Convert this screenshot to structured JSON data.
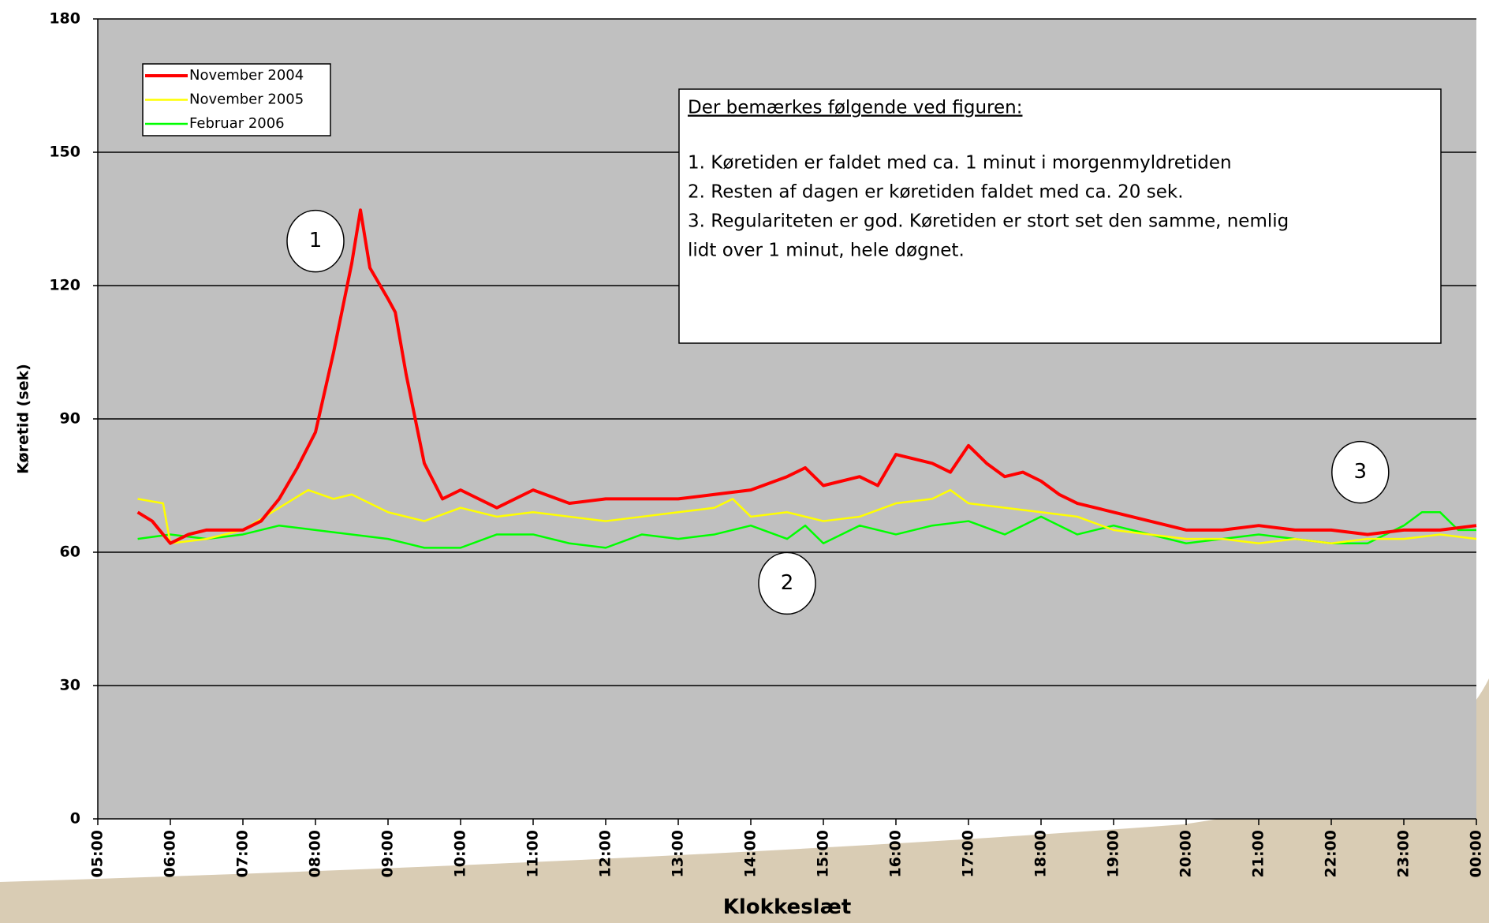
{
  "chart_data": {
    "type": "line",
    "xlabel": "Klokkeslæt",
    "ylabel": "Køretid (sek)",
    "xlim": [
      5,
      24
    ],
    "xticks": [
      {
        "value": 5,
        "label": "05:00"
      },
      {
        "value": 6,
        "label": "06:00"
      },
      {
        "value": 7,
        "label": "07:00"
      },
      {
        "value": 8,
        "label": "08:00"
      },
      {
        "value": 9,
        "label": "09:00"
      },
      {
        "value": 10,
        "label": "10:00"
      },
      {
        "value": 11,
        "label": "11:00"
      },
      {
        "value": 12,
        "label": "12:00"
      },
      {
        "value": 13,
        "label": "13:00"
      },
      {
        "value": 14,
        "label": "14:00"
      },
      {
        "value": 15,
        "label": "15:00"
      },
      {
        "value": 16,
        "label": "16:00"
      },
      {
        "value": 17,
        "label": "17:00"
      },
      {
        "value": 18,
        "label": "18:00"
      },
      {
        "value": 19,
        "label": "19:00"
      },
      {
        "value": 20,
        "label": "20:00"
      },
      {
        "value": 21,
        "label": "21:00"
      },
      {
        "value": 22,
        "label": "22:00"
      },
      {
        "value": 23,
        "label": "23:00"
      },
      {
        "value": 24,
        "label": "00:00"
      }
    ],
    "ylim": [
      0,
      180
    ],
    "yticks": [
      0,
      30,
      60,
      90,
      120,
      150,
      180
    ],
    "grid": true,
    "legend": "upper left",
    "series": [
      {
        "name": "November 2004",
        "color": "#ff0000",
        "x": [
          5.55,
          5.75,
          6.0,
          6.25,
          6.5,
          6.75,
          7.0,
          7.25,
          7.5,
          7.75,
          8.0,
          8.25,
          8.5,
          8.62,
          8.75,
          9.0,
          9.1,
          9.25,
          9.5,
          9.75,
          10.0,
          10.5,
          11.0,
          11.5,
          12.0,
          12.5,
          13.0,
          13.5,
          14.0,
          14.5,
          14.75,
          15.0,
          15.5,
          15.75,
          16.0,
          16.5,
          16.75,
          17.0,
          17.25,
          17.5,
          17.75,
          18.0,
          18.25,
          18.5,
          19.0,
          19.5,
          20.0,
          20.5,
          21.0,
          21.5,
          22.0,
          22.5,
          23.0,
          23.5,
          24.0
        ],
        "values": [
          69,
          67,
          62,
          64,
          65,
          65,
          65,
          67,
          72,
          79,
          87,
          105,
          125,
          137,
          124,
          117,
          114,
          100,
          80,
          72,
          74,
          70,
          74,
          71,
          72,
          72,
          72,
          73,
          74,
          77,
          79,
          75,
          77,
          75,
          82,
          80,
          78,
          84,
          80,
          77,
          78,
          76,
          73,
          71,
          69,
          67,
          65,
          65,
          66,
          65,
          65,
          64,
          65,
          65,
          66
        ]
      },
      {
        "name": "November 2005",
        "color": "#ffff00",
        "x": [
          5.55,
          5.9,
          6.0,
          6.5,
          7.0,
          7.5,
          7.9,
          8.25,
          8.5,
          9.0,
          9.5,
          10.0,
          10.5,
          11.0,
          11.5,
          12.0,
          12.5,
          13.0,
          13.5,
          13.75,
          14.0,
          14.5,
          15.0,
          15.5,
          16.0,
          16.5,
          16.75,
          17.0,
          17.5,
          18.0,
          18.5,
          19.0,
          19.5,
          20.0,
          20.5,
          21.0,
          21.5,
          22.0,
          22.5,
          23.0,
          23.5,
          24.0
        ],
        "values": [
          72,
          71,
          62,
          63,
          65,
          70,
          74,
          72,
          73,
          69,
          67,
          70,
          68,
          69,
          68,
          67,
          68,
          69,
          70,
          72,
          68,
          69,
          67,
          68,
          71,
          72,
          74,
          71,
          70,
          69,
          68,
          65,
          64,
          63,
          63,
          62,
          63,
          62,
          63,
          63,
          64,
          63
        ]
      },
      {
        "name": "Februar 2006",
        "color": "#00ff00",
        "x": [
          5.55,
          6.0,
          6.5,
          7.0,
          7.5,
          8.0,
          8.5,
          9.0,
          9.5,
          10.0,
          10.5,
          11.0,
          11.5,
          12.0,
          12.5,
          13.0,
          13.5,
          14.0,
          14.5,
          14.75,
          15.0,
          15.5,
          16.0,
          16.5,
          17.0,
          17.5,
          18.0,
          18.5,
          19.0,
          19.5,
          20.0,
          20.5,
          21.0,
          21.5,
          22.0,
          22.5,
          23.0,
          23.25,
          23.5,
          23.75,
          24.0
        ],
        "values": [
          63,
          64,
          63,
          64,
          66,
          65,
          64,
          63,
          61,
          61,
          64,
          64,
          62,
          61,
          64,
          63,
          64,
          66,
          63,
          66,
          62,
          66,
          64,
          66,
          67,
          64,
          68,
          64,
          66,
          64,
          62,
          63,
          64,
          63,
          62,
          62,
          66,
          69,
          69,
          65,
          65
        ]
      }
    ],
    "annotations": [
      {
        "text": "1",
        "x": 8.0,
        "y": 130
      },
      {
        "text": "2",
        "x": 14.5,
        "y": 53
      },
      {
        "text": "3",
        "x": 22.4,
        "y": 78
      }
    ],
    "note": {
      "title": "Der bemærkes følgende ved figuren:",
      "lines": [
        "1. Køretiden er faldet med ca. 1 minut i morgenmyldretiden",
        "2. Resten af dagen er køretiden faldet med ca. 20 sek.",
        "3. Regulariteten er god. Køretiden er stort set den samme, nemlig",
        "lidt over 1 minut, hele døgnet."
      ]
    }
  }
}
